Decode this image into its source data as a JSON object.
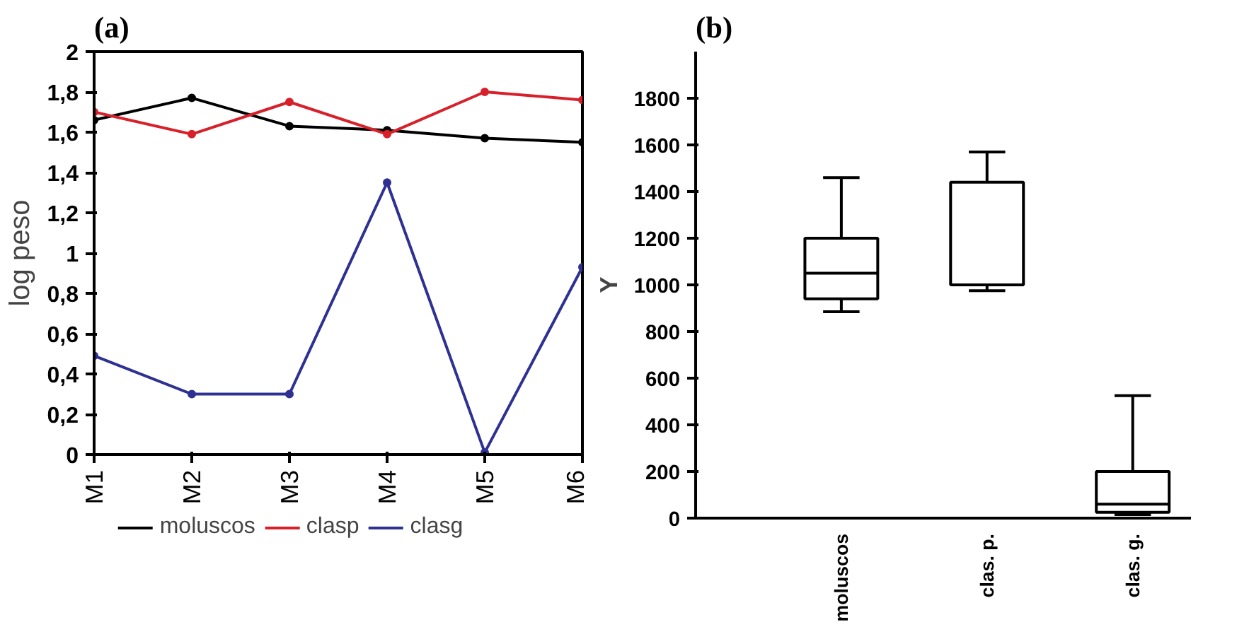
{
  "chart_data": [
    {
      "type": "line",
      "title": "(a)",
      "ylabel": "log peso",
      "categories": [
        "M1",
        "M2",
        "M3",
        "M4",
        "M5",
        "M6"
      ],
      "series": [
        {
          "name": "moluscos",
          "color": "#000000",
          "values": [
            1.66,
            1.77,
            1.63,
            1.61,
            1.57,
            1.55
          ]
        },
        {
          "name": "clasp",
          "color": "#d7202a",
          "values": [
            1.7,
            1.59,
            1.75,
            1.59,
            1.8,
            1.76
          ]
        },
        {
          "name": "clasg",
          "color": "#2e3192",
          "values": [
            0.49,
            0.3,
            0.3,
            1.35,
            0.01,
            0.93
          ]
        }
      ],
      "ylim": [
        0,
        2
      ],
      "yticks": [
        0,
        {
          "value": 0.2,
          "label": "0,2"
        },
        {
          "value": 0.4,
          "label": "0,4"
        },
        {
          "value": 0.6,
          "label": "0,6"
        },
        {
          "value": 0.8,
          "label": "0,8"
        },
        1,
        {
          "value": 1.2,
          "label": "1,2"
        },
        {
          "value": 1.4,
          "label": "1,4"
        },
        {
          "value": 1.6,
          "label": "1,6"
        },
        {
          "value": 1.8,
          "label": "1,8"
        },
        2
      ],
      "grid": false,
      "legend": "bottom",
      "marker": "circle",
      "line_style": "solid"
    },
    {
      "type": "box",
      "title": "(b)",
      "ylabel": "Y",
      "categories": [
        "moluscos",
        "clas. p.",
        "clas. g."
      ],
      "boxes": [
        {
          "low": 885,
          "q1": 940,
          "median": 1050,
          "q3": 1200,
          "high": 1460
        },
        {
          "low": 975,
          "q1": 1000,
          "median": 1000,
          "q3": 1440,
          "high": 1570
        },
        {
          "low": 15,
          "q1": 25,
          "median": 60,
          "q3": 200,
          "high": 525
        }
      ],
      "ylim": [
        0,
        2000
      ],
      "yticks": [
        0,
        200,
        400,
        600,
        800,
        1000,
        1200,
        1400,
        1600,
        1800
      ],
      "grid": false
    }
  ]
}
